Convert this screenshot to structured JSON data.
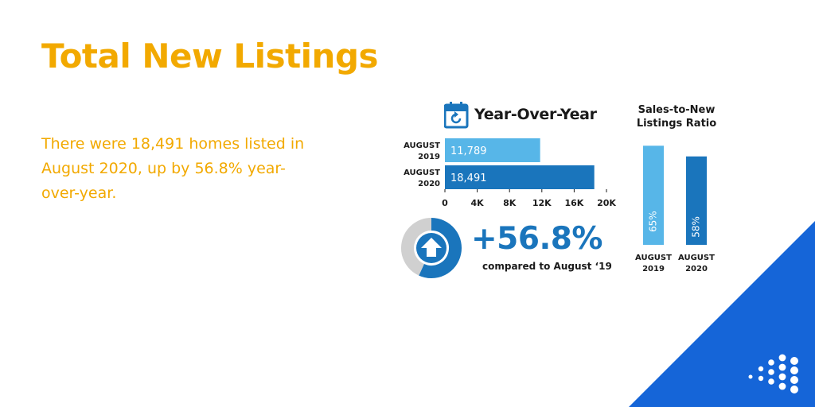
{
  "title": "Total New Listings",
  "description": "There were 18,491 homes listed in August 2020, up by 56.8% year-over-year.",
  "colors": {
    "accent": "#F2A900",
    "bar_light": "#57B6E8",
    "bar_dark": "#1A75BC",
    "ring_grey": "#D0D0D0",
    "corner_blue": "#1565D8"
  },
  "yoy": {
    "title": "Year-Over-Year",
    "icon": "calendar-refresh-icon"
  },
  "change": {
    "value": "+56.8%",
    "caption": "compared to August ‘19",
    "icon": "arrow-up-icon"
  },
  "ratio": {
    "title_line1": "Sales-to-New",
    "title_line2": "Listings Ratio"
  },
  "brand": {
    "icon": "dot-grid-logo-icon"
  },
  "chart_data": [
    {
      "type": "bar",
      "orientation": "horizontal",
      "title": "Year-Over-Year",
      "categories": [
        [
          "AUGUST",
          "2019"
        ],
        [
          "AUGUST",
          "2020"
        ]
      ],
      "values": [
        11789,
        18491
      ],
      "value_labels": [
        "11,789",
        "18,491"
      ],
      "colors": [
        "#57B6E8",
        "#1A75BC"
      ],
      "xticks": [
        "0",
        "4K",
        "8K",
        "12K",
        "16K",
        "20K"
      ],
      "xlim": [
        0,
        20000
      ],
      "grid": false
    },
    {
      "type": "pie",
      "style": "donut",
      "values": [
        56.8,
        43.2
      ],
      "colors": [
        "#1A75BC",
        "#D0D0D0"
      ],
      "grid": false
    },
    {
      "type": "bar",
      "orientation": "vertical",
      "title": "Sales-to-New Listings Ratio",
      "categories": [
        [
          "AUGUST",
          "2019"
        ],
        [
          "AUGUST",
          "2020"
        ]
      ],
      "values": [
        65,
        58
      ],
      "value_labels": [
        "65%",
        "58%"
      ],
      "colors": [
        "#57B6E8",
        "#1A75BC"
      ],
      "ylim": [
        0,
        73
      ],
      "grid": false
    }
  ]
}
